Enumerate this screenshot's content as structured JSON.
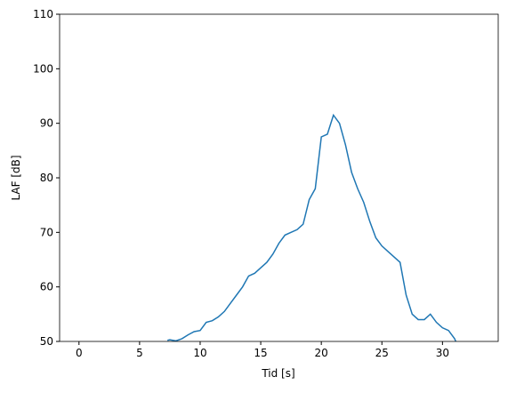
{
  "chart_data": {
    "type": "line",
    "xlabel": "Tid [s]",
    "ylabel": "LAF [dB]",
    "x": [
      7.3,
      7.5,
      8,
      8.5,
      9,
      9.5,
      10,
      10.5,
      11,
      11.5,
      12,
      12.5,
      13,
      13.5,
      14,
      14.5,
      15,
      15.5,
      16,
      16.5,
      17,
      17.5,
      18,
      18.5,
      19,
      19.5,
      20,
      20.5,
      21,
      21.5,
      22,
      22.5,
      23,
      23.5,
      24,
      24.5,
      25,
      25.5,
      26,
      26.5,
      27,
      27.5,
      28,
      28.5,
      29,
      29.5,
      30,
      30.5,
      31,
      31.1
    ],
    "series": [
      {
        "color": "#1f77b4",
        "values": [
          50.2,
          50.3,
          50.1,
          50.5,
          51.2,
          51.8,
          52,
          53.5,
          53.8,
          54.5,
          55.5,
          57,
          58.5,
          60,
          62,
          62.5,
          63.5,
          64.5,
          66,
          68,
          69.5,
          70,
          70.5,
          71.5,
          76,
          78,
          87.5,
          88,
          91.5,
          90,
          86,
          81,
          78,
          75.5,
          72,
          69,
          67.5,
          66.5,
          65.5,
          64.5,
          58.5,
          55,
          54,
          54,
          55,
          53.5,
          52.5,
          52,
          50.5,
          50
        ]
      }
    ],
    "xlim": [
      -1.6,
      34.6
    ],
    "ylim": [
      50,
      110
    ],
    "xticks": [
      0,
      5,
      10,
      15,
      20,
      25,
      30
    ],
    "yticks": [
      50,
      60,
      70,
      80,
      90,
      100,
      110
    ]
  }
}
